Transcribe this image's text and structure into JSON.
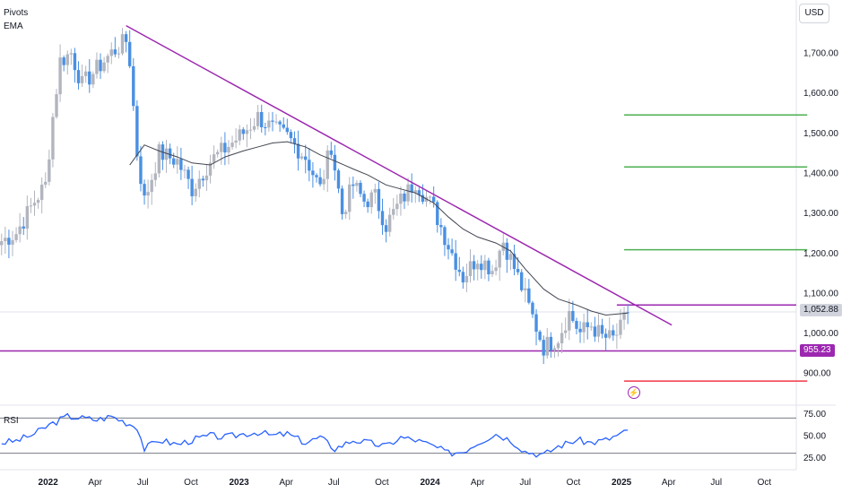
{
  "indicators": {
    "pivots": "Pivots",
    "ema": "EMA",
    "rsi": "RSI"
  },
  "currency_label": "USD",
  "current_price_label": "1,052.88",
  "support_label": "955.23",
  "flash_icon": "lightning-icon",
  "colors": {
    "up": "#b2b5be",
    "down": "#4a90e2",
    "trendline": "#9c27b0",
    "ema": "#434651",
    "pivot_resistance": "#4caf50",
    "pivot_support": "#f23645",
    "rsi": "#2962ff",
    "current_price_bg": "#d1d4dc",
    "support_bg": "#9c27b0"
  },
  "chart_data": {
    "type": "candlestick",
    "price_axis": {
      "ticks": [
        "1,700.00",
        "1,600.00",
        "1,500.00",
        "1,400.00",
        "1,300.00",
        "1,200.00",
        "1,100.00",
        "1,000.00",
        "900.00"
      ],
      "tick_values": [
        1700,
        1600,
        1500,
        1400,
        1300,
        1200,
        1100,
        1000,
        900
      ]
    },
    "time_axis": {
      "labels": [
        "2022",
        "Apr",
        "Jul",
        "Oct",
        "2023",
        "Apr",
        "Jul",
        "Oct",
        "2024",
        "Apr",
        "Jul",
        "Oct",
        "2025",
        "Apr",
        "Jul",
        "Oct"
      ],
      "bold": [
        "2022",
        "2023",
        "2024",
        "2025"
      ],
      "start": "2021-10",
      "end": "2025-12"
    },
    "anchors": [
      [
        "2021-10-04",
        1230
      ],
      [
        "2021-11-01",
        1250
      ],
      [
        "2021-12-06",
        1330
      ],
      [
        "2021-12-27",
        1370
      ],
      [
        "2022-01-10",
        1540
      ],
      [
        "2022-01-24",
        1680
      ],
      [
        "2022-02-14",
        1700
      ],
      [
        "2022-03-07",
        1620
      ],
      [
        "2022-04-04",
        1660
      ],
      [
        "2022-05-02",
        1700
      ],
      [
        "2022-05-30",
        1730
      ],
      [
        "2022-06-06",
        1680
      ],
      [
        "2022-06-20",
        1450
      ],
      [
        "2022-07-04",
        1330
      ],
      [
        "2022-08-01",
        1450
      ],
      [
        "2022-09-05",
        1430
      ],
      [
        "2022-10-03",
        1360
      ],
      [
        "2022-11-07",
        1430
      ],
      [
        "2022-12-05",
        1460
      ],
      [
        "2023-01-09",
        1500
      ],
      [
        "2023-02-06",
        1540
      ],
      [
        "2023-03-06",
        1510
      ],
      [
        "2023-04-03",
        1490
      ],
      [
        "2023-05-08",
        1440
      ],
      [
        "2023-06-05",
        1360
      ],
      [
        "2023-06-26",
        1470
      ],
      [
        "2023-07-17",
        1300
      ],
      [
        "2023-08-07",
        1370
      ],
      [
        "2023-08-28",
        1330
      ],
      [
        "2023-09-18",
        1340
      ],
      [
        "2023-10-09",
        1270
      ],
      [
        "2023-11-06",
        1330
      ],
      [
        "2023-12-04",
        1380
      ],
      [
        "2024-01-08",
        1310
      ],
      [
        "2024-02-05",
        1220
      ],
      [
        "2024-03-04",
        1140
      ],
      [
        "2024-04-01",
        1190
      ],
      [
        "2024-04-29",
        1160
      ],
      [
        "2024-05-20",
        1230
      ],
      [
        "2024-06-17",
        1140
      ],
      [
        "2024-07-15",
        1040
      ],
      [
        "2024-08-05",
        965
      ],
      [
        "2024-09-02",
        990
      ],
      [
        "2024-09-23",
        1050
      ],
      [
        "2024-10-14",
        1000
      ],
      [
        "2024-11-04",
        1020
      ],
      [
        "2024-11-25",
        990
      ],
      [
        "2024-12-16",
        985
      ],
      [
        "2024-12-30",
        1010
      ],
      [
        "2025-01-13",
        1055
      ]
    ],
    "ema": [
      [
        "2022-06-06",
        1420
      ],
      [
        "2022-07-04",
        1470
      ],
      [
        "2022-08-01",
        1455
      ],
      [
        "2022-09-05",
        1440
      ],
      [
        "2022-10-03",
        1425
      ],
      [
        "2022-11-07",
        1420
      ],
      [
        "2022-12-05",
        1440
      ],
      [
        "2023-01-09",
        1455
      ],
      [
        "2023-02-06",
        1465
      ],
      [
        "2023-03-06",
        1475
      ],
      [
        "2023-04-03",
        1478
      ],
      [
        "2023-05-08",
        1465
      ],
      [
        "2023-06-05",
        1445
      ],
      [
        "2023-07-03",
        1430
      ],
      [
        "2023-08-07",
        1410
      ],
      [
        "2023-09-04",
        1395
      ],
      [
        "2023-10-09",
        1370
      ],
      [
        "2023-11-06",
        1360
      ],
      [
        "2023-12-04",
        1350
      ],
      [
        "2024-01-08",
        1325
      ],
      [
        "2024-02-05",
        1290
      ],
      [
        "2024-03-04",
        1260
      ],
      [
        "2024-04-01",
        1240
      ],
      [
        "2024-05-06",
        1225
      ],
      [
        "2024-06-03",
        1205
      ],
      [
        "2024-07-01",
        1160
      ],
      [
        "2024-08-05",
        1110
      ],
      [
        "2024-09-02",
        1085
      ],
      [
        "2024-10-07",
        1070
      ],
      [
        "2024-11-04",
        1055
      ],
      [
        "2024-12-02",
        1045
      ],
      [
        "2025-01-13",
        1050
      ]
    ],
    "trendline": {
      "from": [
        "2022-05-30",
        1768
      ],
      "to": [
        "2025-04-07",
        1020
      ]
    },
    "levels": {
      "resistance": 1070,
      "support": 955.23,
      "current": 1052.88
    },
    "pivot_levels": {
      "from": "2025-01-06",
      "to": "2025-12-22",
      "resistance": [
        1545,
        1415,
        1208
      ],
      "support": [
        880
      ]
    },
    "rsi": {
      "ticks": [
        "75.00",
        "50.00",
        "25.00"
      ],
      "tick_values": [
        75,
        50,
        25
      ],
      "overbought": 70,
      "oversold": 30,
      "points": [
        [
          "2021-10-04",
          42
        ],
        [
          "2021-11-01",
          44
        ],
        [
          "2021-12-06",
          52
        ],
        [
          "2022-01-03",
          62
        ],
        [
          "2022-02-07",
          72
        ],
        [
          "2022-03-07",
          70
        ],
        [
          "2022-04-04",
          68
        ],
        [
          "2022-05-02",
          72
        ],
        [
          "2022-05-30",
          65
        ],
        [
          "2022-06-20",
          60
        ],
        [
          "2022-07-04",
          35
        ],
        [
          "2022-08-01",
          45
        ],
        [
          "2022-09-05",
          40
        ],
        [
          "2022-10-03",
          45
        ],
        [
          "2022-11-07",
          50
        ],
        [
          "2022-12-05",
          48
        ],
        [
          "2023-01-09",
          52
        ],
        [
          "2023-02-06",
          54
        ],
        [
          "2023-03-06",
          50
        ],
        [
          "2023-04-03",
          52
        ],
        [
          "2023-05-08",
          42
        ],
        [
          "2023-06-05",
          48
        ],
        [
          "2023-07-03",
          35
        ],
        [
          "2023-08-07",
          45
        ],
        [
          "2023-09-04",
          42
        ],
        [
          "2023-10-09",
          38
        ],
        [
          "2023-11-06",
          48
        ],
        [
          "2023-12-04",
          45
        ],
        [
          "2024-01-08",
          38
        ],
        [
          "2024-02-05",
          30
        ],
        [
          "2024-03-04",
          32
        ],
        [
          "2024-04-01",
          42
        ],
        [
          "2024-05-06",
          52
        ],
        [
          "2024-06-03",
          45
        ],
        [
          "2024-07-01",
          32
        ],
        [
          "2024-08-05",
          28
        ],
        [
          "2024-09-02",
          38
        ],
        [
          "2024-10-07",
          45
        ],
        [
          "2024-11-04",
          42
        ],
        [
          "2024-12-02",
          45
        ],
        [
          "2025-01-13",
          55
        ]
      ]
    }
  }
}
